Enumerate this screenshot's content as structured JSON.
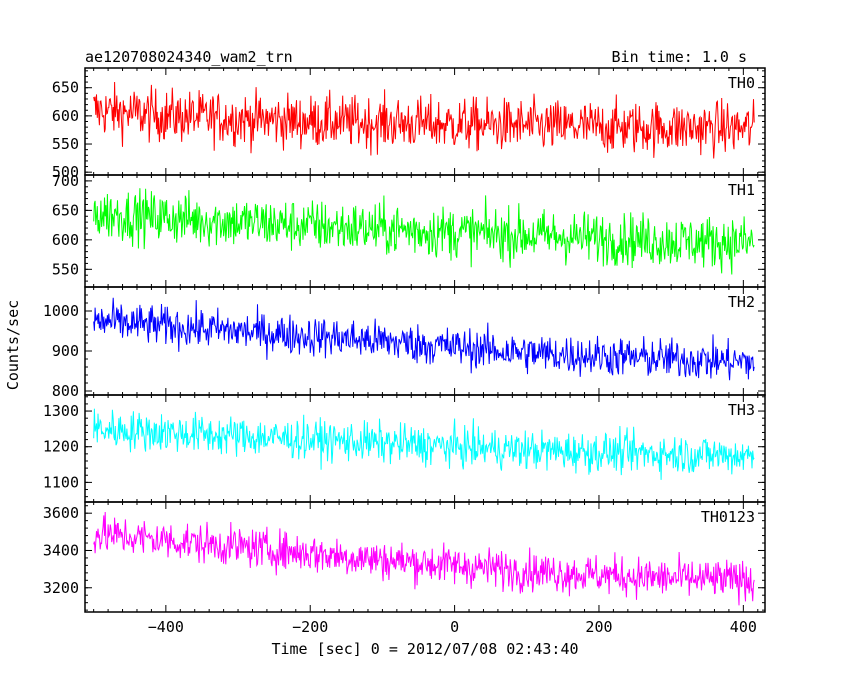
{
  "header": {
    "title": "ae120708024340_wam2_trn",
    "bin_time": "Bin time: 1.0 s"
  },
  "chart_data": {
    "type": "line",
    "xlabel": "Time [sec] 0 = 2012/07/08 02:43:40",
    "ylabel": "Counts/sec",
    "xlim": [
      -512,
      430
    ],
    "x_range_data": [
      -500,
      415
    ],
    "x_ticks": [
      -400,
      -200,
      0,
      200,
      400
    ],
    "x_tick_labels": [
      "−400",
      "−200",
      "0",
      "200",
      "400"
    ],
    "grid": false,
    "panels": [
      {
        "name": "TH0",
        "color": "#ff0000",
        "ylim": [
          495,
          685
        ],
        "y_ticks": [
          500,
          550,
          600,
          650
        ],
        "y_tick_labels": [
          "500",
          "550",
          "600",
          "650"
        ],
        "trend": [
          [
            -500,
            610
          ],
          [
            -400,
            600
          ],
          [
            -200,
            590
          ],
          [
            0,
            585
          ],
          [
            200,
            580
          ],
          [
            415,
            578
          ]
        ],
        "noise_amplitude": 42
      },
      {
        "name": "TH1",
        "color": "#00ff00",
        "ylim": [
          520,
          710
        ],
        "y_ticks": [
          550,
          600,
          650,
          700
        ],
        "y_tick_labels": [
          "550",
          "600",
          "650",
          "700"
        ],
        "trend": [
          [
            -500,
            645
          ],
          [
            -300,
            630
          ],
          [
            -100,
            618
          ],
          [
            100,
            608
          ],
          [
            300,
            598
          ],
          [
            415,
            595
          ]
        ],
        "noise_amplitude": 40
      },
      {
        "name": "TH2",
        "color": "#0000ff",
        "ylim": [
          790,
          1060
        ],
        "y_ticks": [
          800,
          900,
          1000
        ],
        "y_tick_labels": [
          "800",
          "900",
          "1000"
        ],
        "trend": [
          [
            -500,
            975
          ],
          [
            -300,
            950
          ],
          [
            -100,
            925
          ],
          [
            100,
            895
          ],
          [
            300,
            880
          ],
          [
            415,
            872
          ]
        ],
        "noise_amplitude": 45
      },
      {
        "name": "TH3",
        "color": "#00ffff",
        "ylim": [
          1045,
          1345
        ],
        "y_ticks": [
          1100,
          1200,
          1300
        ],
        "y_tick_labels": [
          "1100",
          "1200",
          "1300"
        ],
        "trend": [
          [
            -500,
            1250
          ],
          [
            -300,
            1230
          ],
          [
            -100,
            1210
          ],
          [
            100,
            1190
          ],
          [
            300,
            1180
          ],
          [
            415,
            1175
          ]
        ],
        "noise_amplitude": 50
      },
      {
        "name": "TH0123",
        "color": "#ff00ff",
        "ylim": [
          3070,
          3660
        ],
        "y_ticks": [
          3200,
          3400,
          3600
        ],
        "y_tick_labels": [
          "3200",
          "3400",
          "3600"
        ],
        "trend": [
          [
            -500,
            3490
          ],
          [
            -300,
            3420
          ],
          [
            -100,
            3350
          ],
          [
            100,
            3290
          ],
          [
            300,
            3250
          ],
          [
            415,
            3240
          ]
        ],
        "noise_amplitude": 95
      }
    ]
  }
}
